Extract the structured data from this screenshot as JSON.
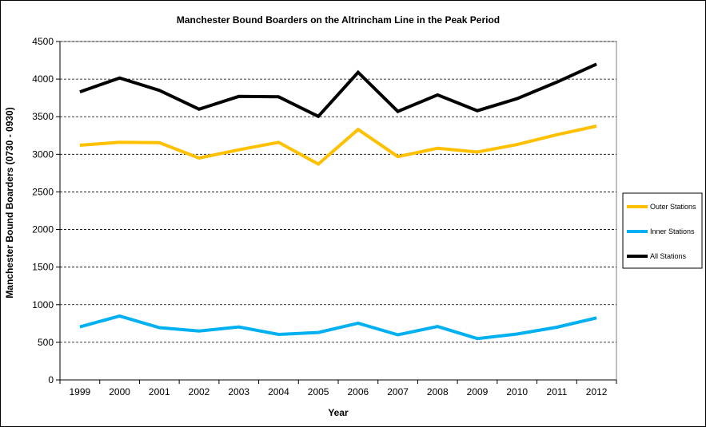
{
  "chart_data": {
    "type": "line",
    "title": "Manchester Bound Boarders on the Altrincham Line in the Peak Period",
    "xlabel": "Year",
    "ylabel": "Manchester Bound Boarders (0730 - 0930)",
    "ylim": [
      0,
      4500
    ],
    "ytick_step": 500,
    "grid": "horizontal dashed",
    "legend_position": "right",
    "categories": [
      "1999",
      "2000",
      "2001",
      "2002",
      "2003",
      "2004",
      "2005",
      "2006",
      "2007",
      "2008",
      "2009",
      "2010",
      "2011",
      "2012"
    ],
    "series": [
      {
        "name": "Outer Stations",
        "color": "#FFC000",
        "values": [
          3120,
          3160,
          3155,
          2950,
          3060,
          3160,
          2870,
          3330,
          2970,
          3080,
          3030,
          3130,
          3260,
          3375
        ]
      },
      {
        "name": "Inner Stations",
        "color": "#00B0F0",
        "values": [
          705,
          850,
          695,
          650,
          705,
          605,
          630,
          755,
          600,
          710,
          550,
          610,
          700,
          825
        ]
      },
      {
        "name": "All Stations",
        "color": "#000000",
        "values": [
          3830,
          4015,
          3850,
          3600,
          3770,
          3765,
          3505,
          4090,
          3570,
          3790,
          3580,
          3740,
          3960,
          4200
        ]
      }
    ]
  }
}
